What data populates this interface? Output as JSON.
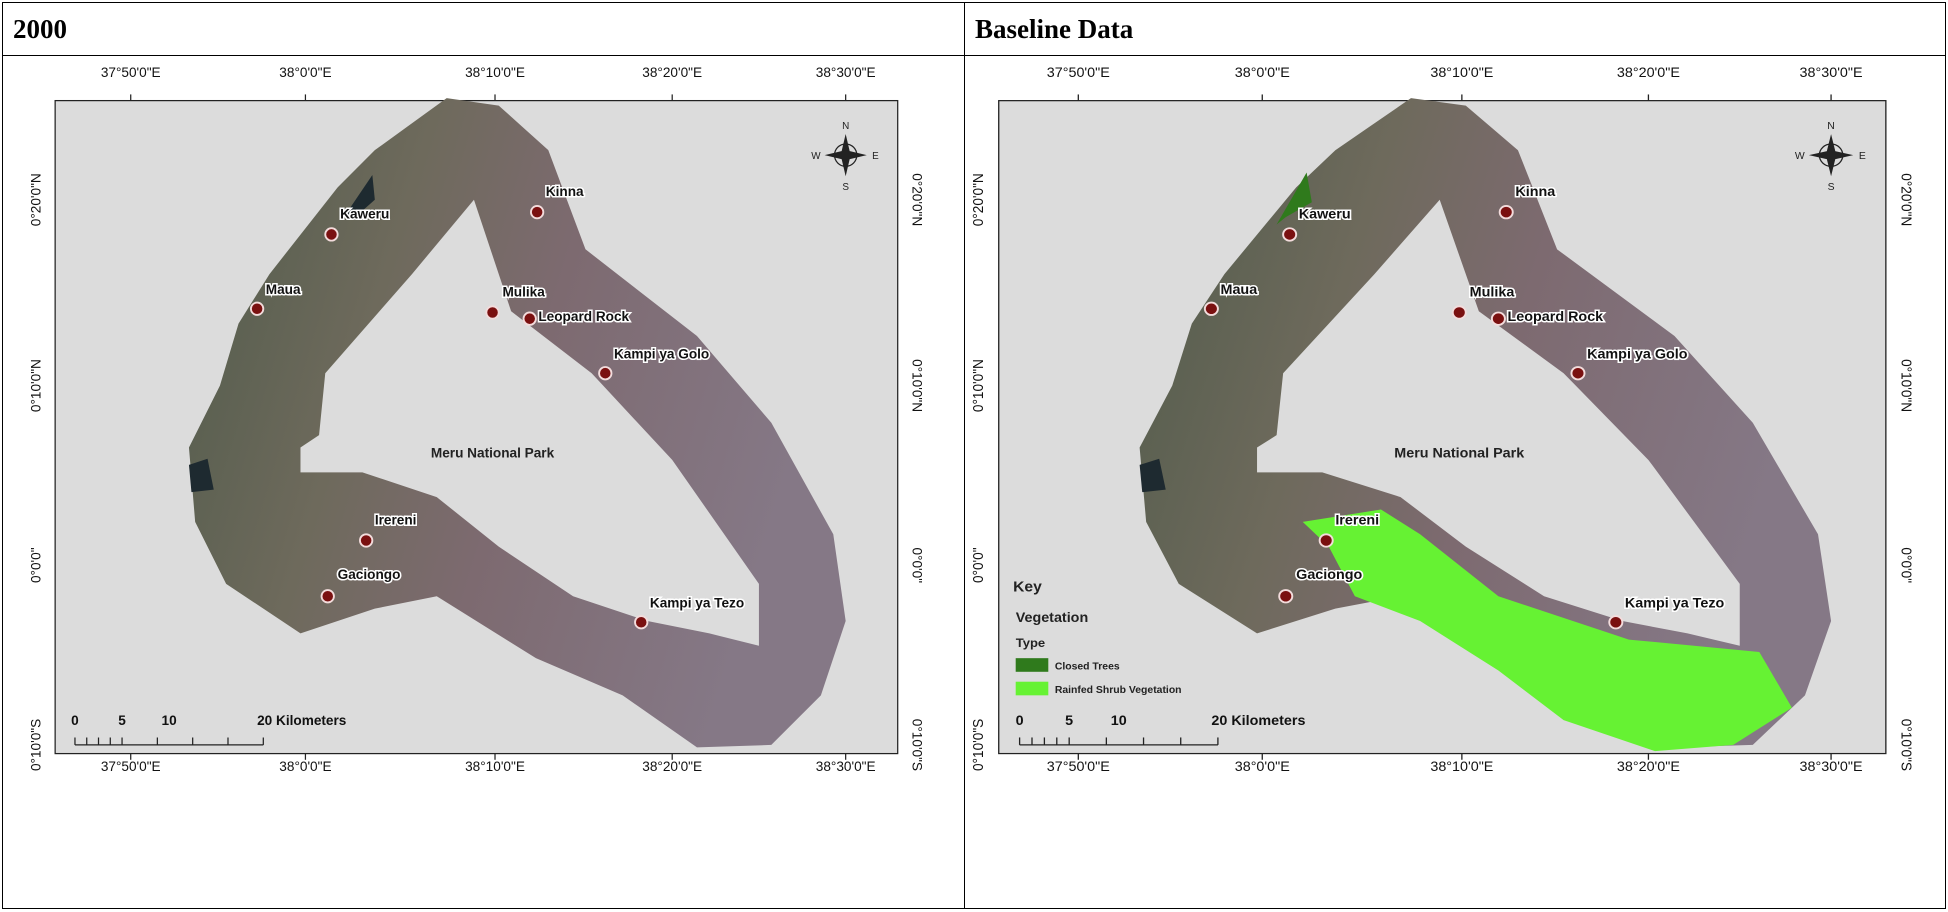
{
  "panels": [
    {
      "title": "2000",
      "longitude_labels": [
        "37°50'0\"E",
        "38°0'0\"E",
        "38°10'0\"E",
        "38°20'0\"E",
        "38°30'0\"E"
      ],
      "latitude_labels": [
        "0°20'0\"N",
        "0°10'0\"N",
        "0°0'0\"",
        "0°10'0\"S"
      ],
      "places": [
        "Kaweru",
        "Maua",
        "Kinna",
        "Mulika",
        "Leopard Rock",
        "Kampi ya Golo",
        "Irereni",
        "Gaciongo",
        "Kampi ya Tezo"
      ],
      "park_label": "Meru National Park",
      "scale_labels": [
        "0",
        "5",
        "10",
        "20 Kilometers"
      ],
      "compass": [
        "N",
        "S",
        "E",
        "W"
      ]
    },
    {
      "title": "Baseline Data",
      "longitude_labels": [
        "37°50'0\"E",
        "38°0'0\"E",
        "38°10'0\"E",
        "38°20'0\"E",
        "38°30'0\"E"
      ],
      "latitude_labels": [
        "0°20'0\"N",
        "0°10'0\"N",
        "0°0'0\"",
        "0°10'0\"S"
      ],
      "places": [
        "Kaweru",
        "Maua",
        "Kinna",
        "Mulika",
        "Leopard Rock",
        "Kampi ya Golo",
        "Irereni",
        "Gaciongo",
        "Kampi ya Tezo"
      ],
      "park_label": "Meru National Park",
      "scale_labels": [
        "0",
        "5",
        "10",
        "20 Kilometers"
      ],
      "compass": [
        "N",
        "S",
        "E",
        "W"
      ],
      "legend": {
        "title": "Key",
        "subtitle": "Vegetation",
        "field": "Type",
        "items": [
          {
            "label": "Closed Trees",
            "color": "#2f7a1c"
          },
          {
            "label": "Rainfed Shrub Vegetation",
            "color": "#66f233"
          }
        ]
      }
    }
  ]
}
